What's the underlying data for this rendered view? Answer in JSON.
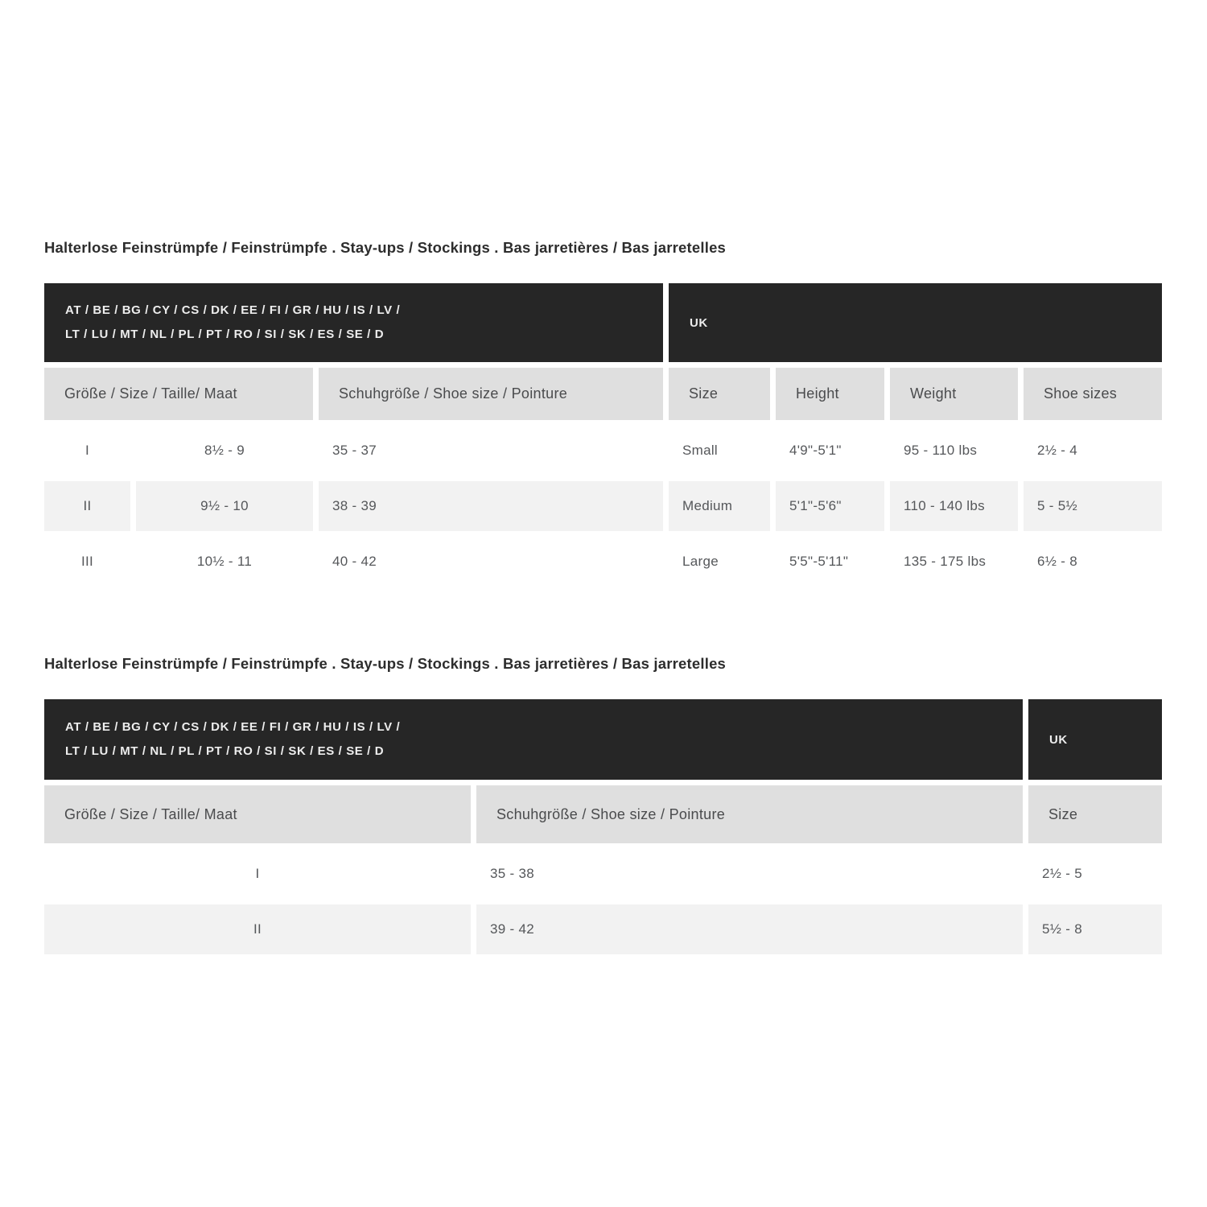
{
  "colors": {
    "region_header_bg": "#262626",
    "region_header_text": "#ededed",
    "column_header_bg": "#dfdfdf",
    "stripe_bg": "#f2f2f2",
    "title_text": "#2d2d2d",
    "cell_text": "#55575a"
  },
  "table1": {
    "title": "Halterlose Feinstrümpfe / Feinstrümpfe . Stay-ups / Stockings . Bas jarretières / Bas jarretelles",
    "region_header": {
      "eu_line1": "AT / BE / BG / CY / CS / DK / EE / FI / GR / HU / IS / LV /",
      "eu_line2": "LT / LU / MT / NL / PL / PT / RO / SI / SK / ES / SE / D",
      "uk": "UK"
    },
    "columns": {
      "size_label": "Größe / Size / Taille/ Maat",
      "shoe_label": "Schuhgröße / Shoe size / Pointure",
      "uk_size": "Size",
      "uk_height": "Height",
      "uk_weight": "Weight",
      "uk_shoe": "Shoe sizes"
    },
    "rows": [
      {
        "num": "I",
        "size": "8½ - 9",
        "shoe": "35 - 37",
        "uk_size": "Small",
        "height": "4'9\"-5'1\"",
        "weight": "95 - 110 lbs",
        "uk_shoe": "2½ - 4"
      },
      {
        "num": "II",
        "size": "9½ - 10",
        "shoe": "38 - 39",
        "uk_size": "Medium",
        "height": "5'1\"-5'6\"",
        "weight": "110 - 140 lbs",
        "uk_shoe": "5 - 5½"
      },
      {
        "num": "III",
        "size": "10½ - 11",
        "shoe": "40 - 42",
        "uk_size": "Large",
        "height": "5'5\"-5'11\"",
        "weight": "135 - 175 lbs",
        "uk_shoe": "6½ - 8"
      }
    ]
  },
  "table2": {
    "title": "Halterlose Feinstrümpfe / Feinstrümpfe . Stay-ups / Stockings . Bas jarretières / Bas jarretelles",
    "region_header": {
      "eu_line1": "AT / BE / BG / CY / CS / DK / EE / FI / GR / HU / IS / LV /",
      "eu_line2": "LT / LU / MT / NL / PL / PT / RO / SI / SK / ES / SE / D",
      "uk": "UK"
    },
    "columns": {
      "size_label": "Größe / Size / Taille/ Maat",
      "shoe_label": "Schuhgröße / Shoe size / Pointure",
      "uk_size": "Size"
    },
    "rows": [
      {
        "num": "I",
        "shoe": "35 - 38",
        "uk_size": "2½ - 5"
      },
      {
        "num": "II",
        "shoe": "39 - 42",
        "uk_size": "5½ - 8"
      }
    ]
  }
}
